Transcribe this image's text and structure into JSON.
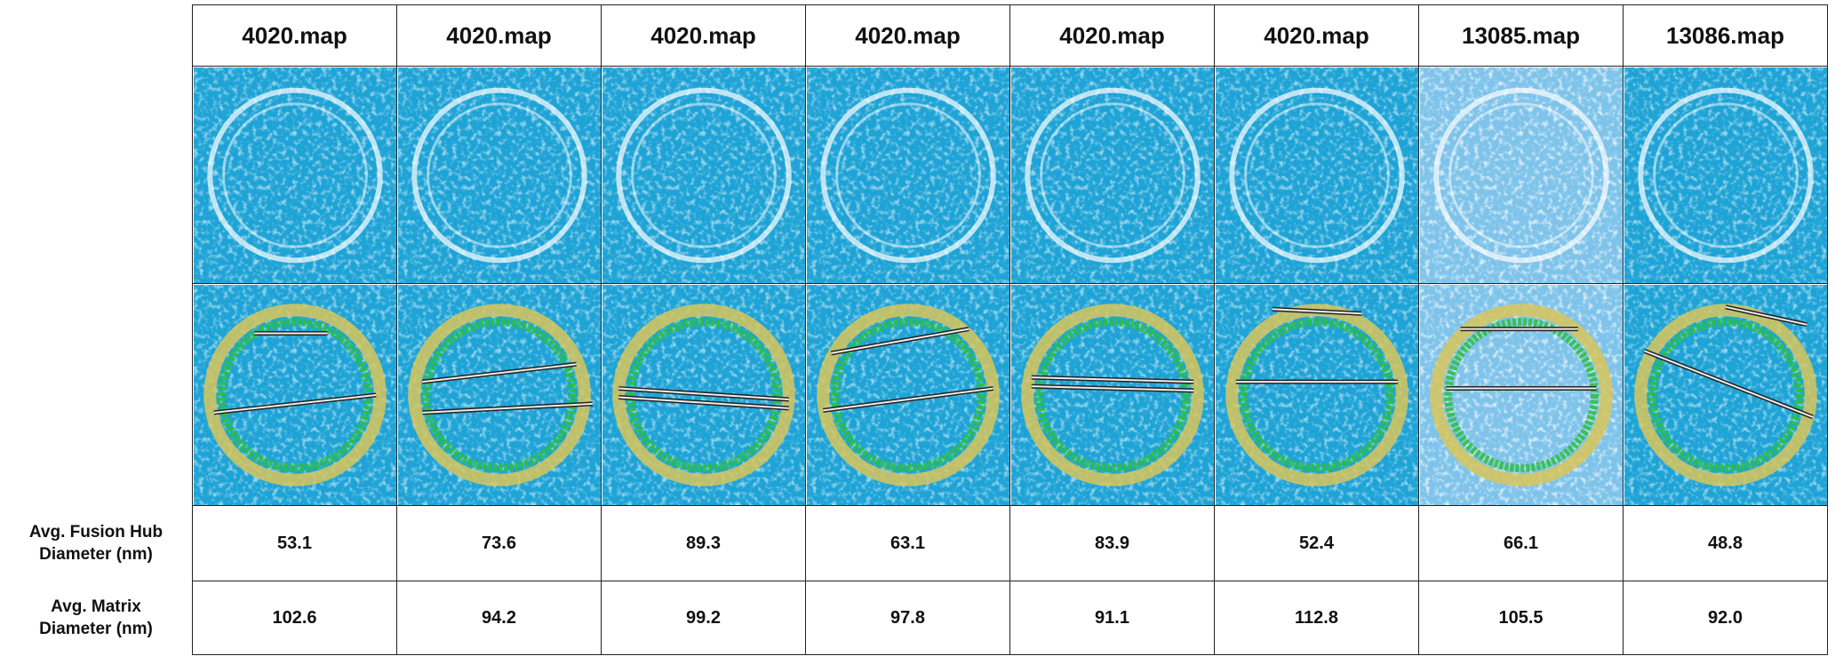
{
  "columns": [
    "4020.map",
    "4020.map",
    "4020.map",
    "4020.map",
    "4020.map",
    "4020.map",
    "13085.map",
    "13086.map"
  ],
  "rows": [
    {
      "label": "Avg. Fusion Hub Diameter (nm)",
      "values": [
        "53.1",
        "73.6",
        "89.3",
        "63.1",
        "83.9",
        "52.4",
        "66.1",
        "48.8"
      ]
    },
    {
      "label": "Avg. Matrix Diameter (nm)",
      "values": [
        "102.6",
        "94.2",
        "99.2",
        "97.8",
        "91.1",
        "112.8",
        "105.5",
        "92.0"
      ]
    }
  ]
}
